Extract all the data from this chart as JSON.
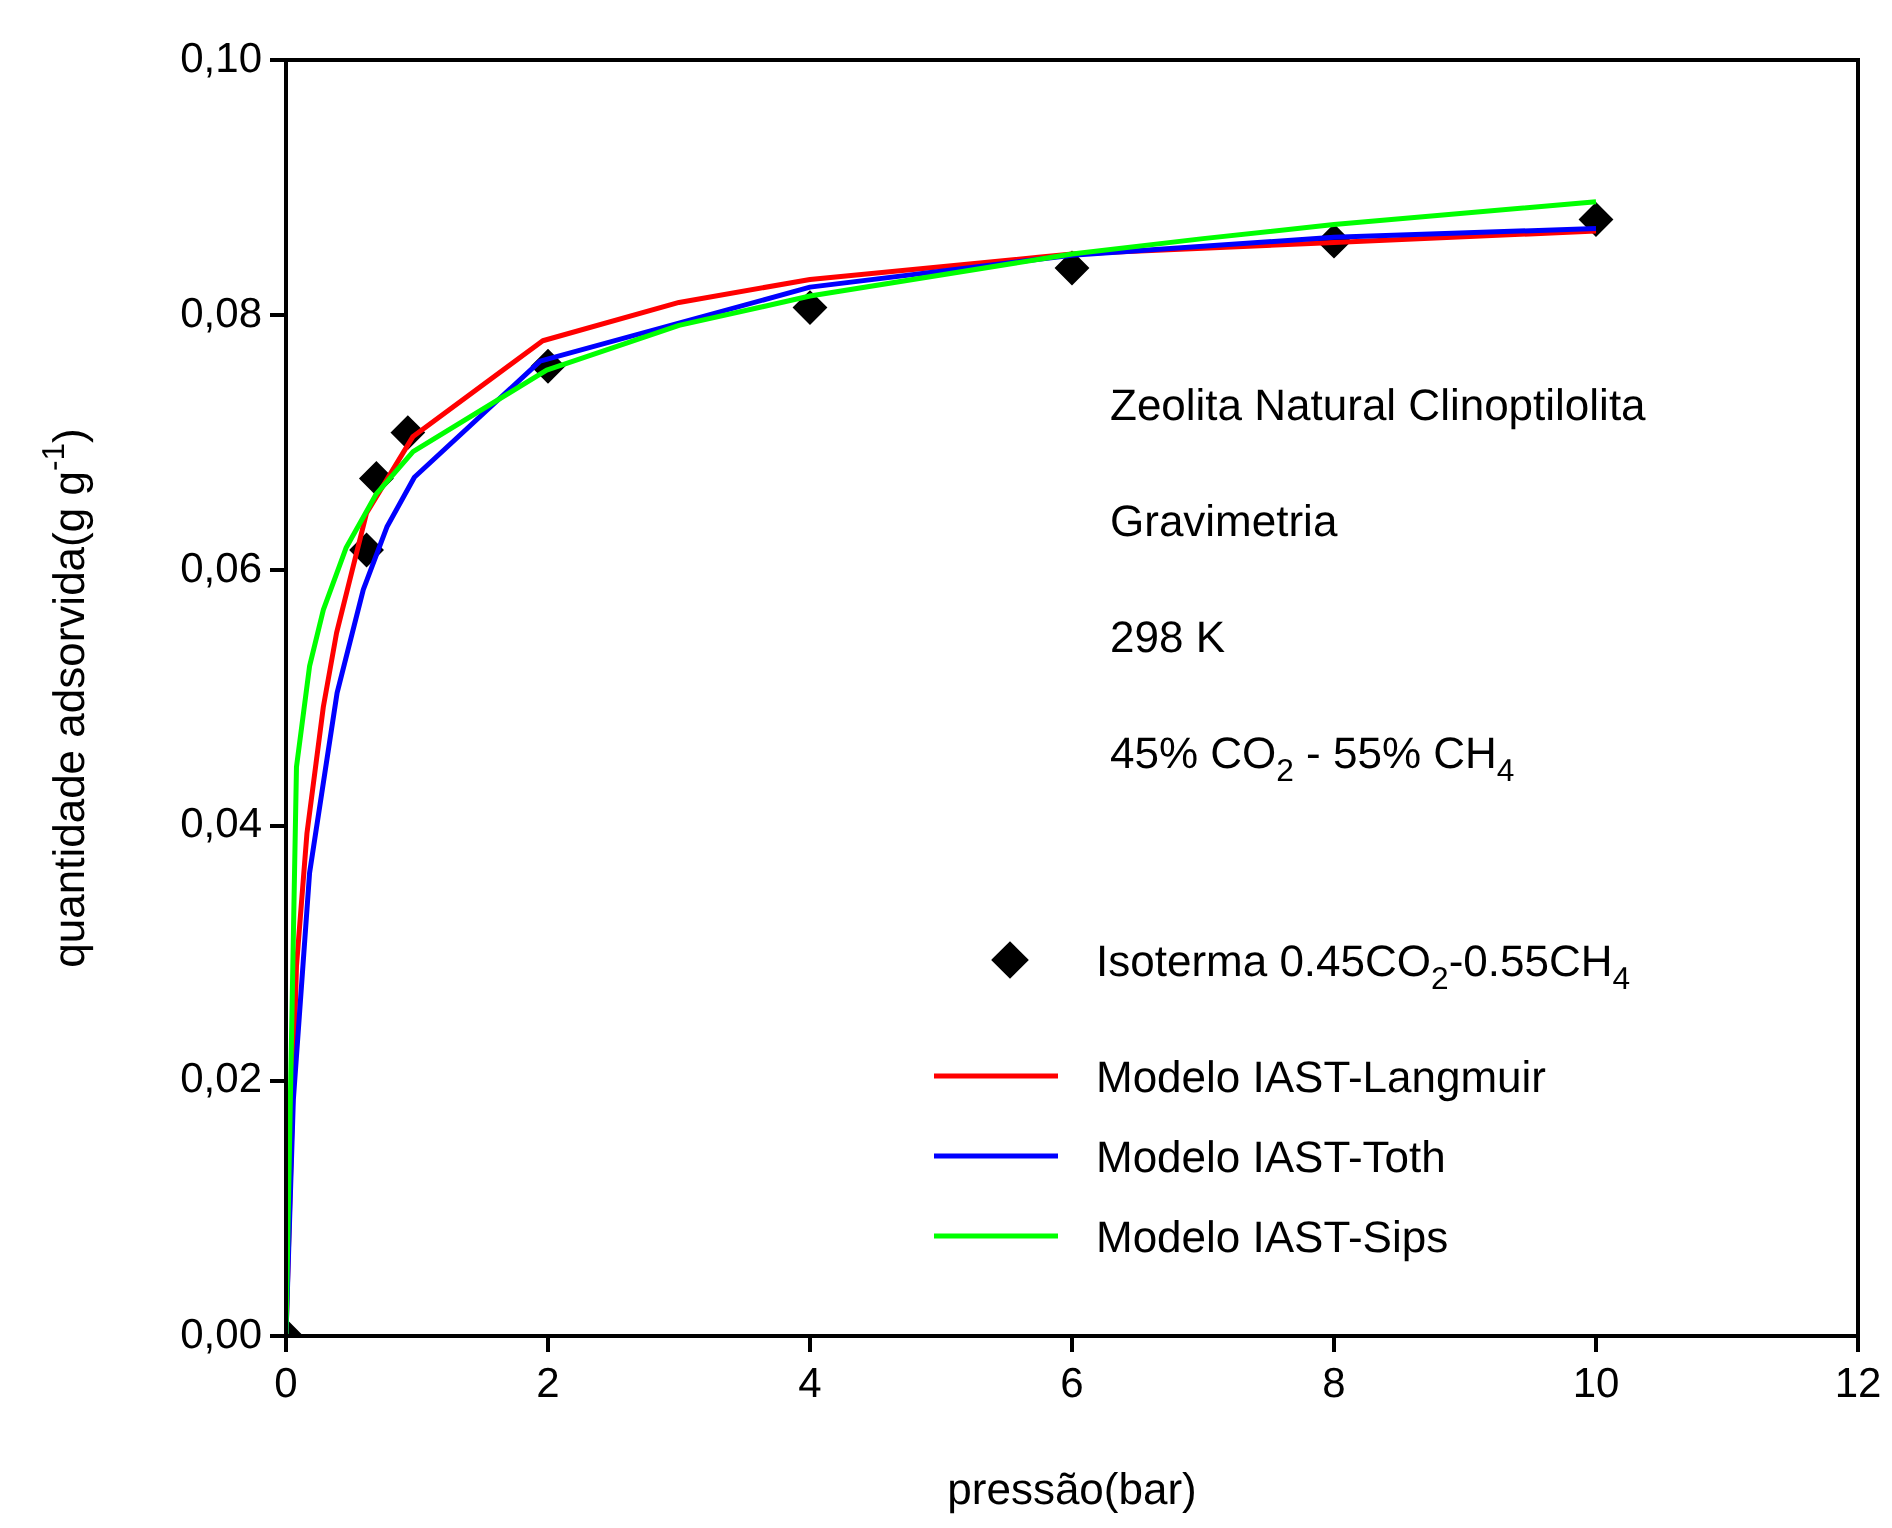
{
  "chart_data": {
    "type": "line",
    "xlabel": "pressão(bar)",
    "ylabel": "quantidade adsorvida(g g$^{-1}$)",
    "xlim": [
      0,
      12
    ],
    "xticks": [
      0,
      2,
      4,
      6,
      8,
      10,
      12
    ],
    "ylim": [
      0,
      0.1
    ],
    "yticks": [
      {
        "value": 0,
        "label": "0,00"
      },
      {
        "value": 0.02,
        "label": "0,02"
      },
      {
        "value": 0.04,
        "label": "0,04"
      },
      {
        "value": 0.06,
        "label": "0,06"
      },
      {
        "value": 0.08,
        "label": "0,08"
      },
      {
        "value": 0.1,
        "label": "0,10"
      }
    ],
    "grid": false,
    "legend": "bottom right",
    "annotations": [
      "Zeolita Natural Clinoptilolita",
      "Gravimetria",
      "298 K",
      "45% CO$_{2}$ - 55% CH$_{4}$"
    ],
    "series": [
      {
        "name": "Isoterma 0.45CO$_{2}$-0.55CH$_{4}$",
        "type": "scatter",
        "marker": "diamond",
        "color": "#000000",
        "x": [
          0,
          0.615,
          0.69,
          0.93,
          2,
          4,
          6,
          8,
          10
        ],
        "values": [
          0,
          0.0616,
          0.0672,
          0.0708,
          0.076,
          0.0806,
          0.0837,
          0.0858,
          0.0875
        ]
      },
      {
        "name": "Modelo IAST-Langmuir",
        "type": "line",
        "marker": "none",
        "color": "#ff0000",
        "x": [
          0,
          0.08,
          0.16,
          0.285,
          0.386,
          0.615,
          0.97,
          1.96,
          3,
          4,
          6,
          8,
          10
        ],
        "values": [
          0,
          0.029,
          0.0394,
          0.0493,
          0.0551,
          0.0645,
          0.0705,
          0.078,
          0.081,
          0.0828,
          0.0848,
          0.0857,
          0.0866
        ]
      },
      {
        "name": "Modelo IAST-Toth",
        "type": "line",
        "marker": "none",
        "color": "#0000ff",
        "x": [
          0,
          0.056,
          0.18,
          0.39,
          0.59,
          0.77,
          0.98,
          1.94,
          4,
          6,
          8,
          10
        ],
        "values": [
          0,
          0.0185,
          0.0363,
          0.0504,
          0.0585,
          0.0634,
          0.0673,
          0.0764,
          0.0822,
          0.0847,
          0.0861,
          0.0868
        ]
      },
      {
        "name": "Modelo IAST-Sips",
        "type": "line",
        "marker": "none",
        "color": "#00ff00",
        "x": [
          0,
          0.08,
          0.18,
          0.285,
          0.46,
          0.69,
          0.97,
          1.99,
          3,
          4,
          6,
          7,
          8,
          10
        ],
        "values": [
          0,
          0.0446,
          0.0525,
          0.0569,
          0.0618,
          0.066,
          0.0693,
          0.0757,
          0.0792,
          0.0815,
          0.0848,
          0.086,
          0.0871,
          0.0889
        ]
      }
    ]
  }
}
